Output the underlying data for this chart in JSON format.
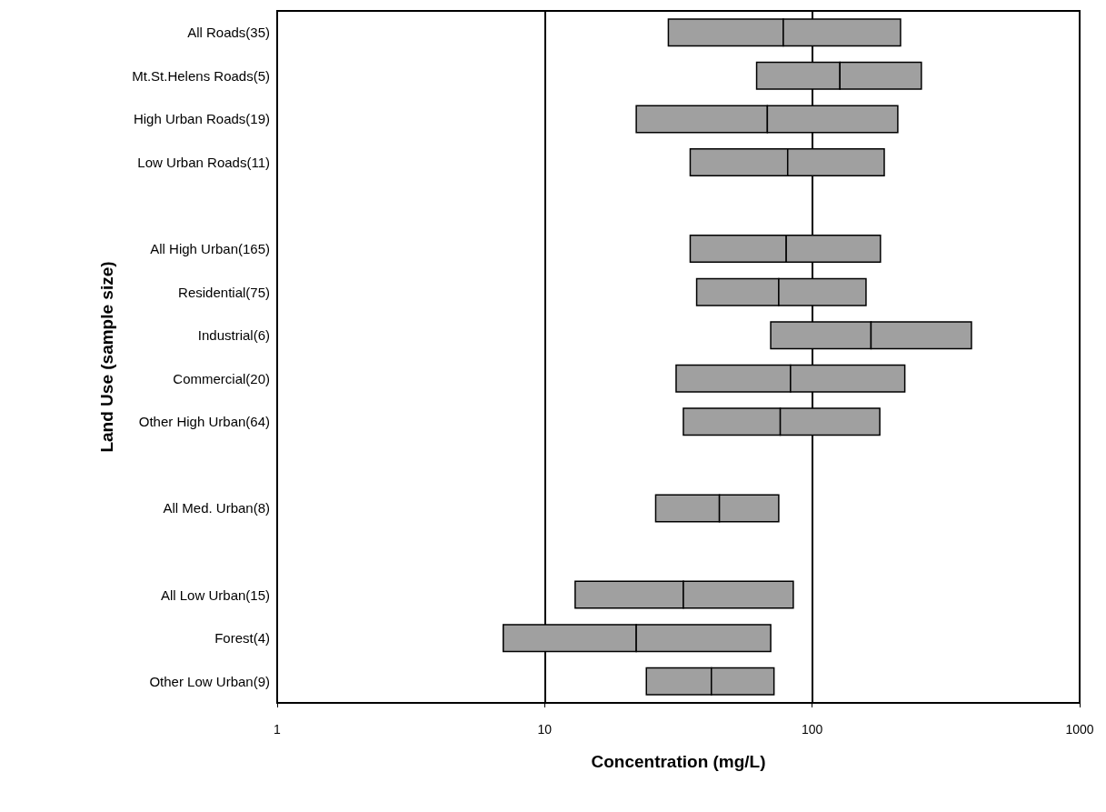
{
  "chart_data": {
    "type": "bar",
    "orientation": "horizontal",
    "log": "x",
    "xlabel": "Concentration (mg/L)",
    "ylabel": "Land Use (sample size)",
    "categories": [
      "All Roads(35)",
      "Mt.St.Helens Roads(5)",
      "High Urban Roads(19)",
      "Low Urban Roads(11)",
      null,
      "All High Urban(165)",
      "Residential(75)",
      "Industrial(6)",
      "Commercial(20)",
      "Other High Urban(64)",
      null,
      "All Med. Urban(8)",
      null,
      "All Low Urban(15)",
      "Forest(4)",
      "Other Low Urban(9)"
    ],
    "xlim": [
      1,
      1000
    ],
    "xticks": [
      1,
      10,
      100,
      1000
    ],
    "grid": "x",
    "series": [
      {
        "color": "#a0a0a0",
        "base": [
          29,
          62,
          22,
          35,
          null,
          35,
          37,
          70,
          31,
          33,
          null,
          26,
          null,
          13,
          7,
          24
        ],
        "values": [
          49,
          65,
          46,
          46,
          null,
          45,
          38,
          96,
          52,
          43,
          null,
          19,
          null,
          20,
          15,
          18
        ]
      },
      {
        "color": "#a0a0a0",
        "base": [
          78,
          127,
          68,
          81,
          null,
          80,
          75,
          166,
          83,
          76,
          null,
          45,
          null,
          33,
          22,
          42
        ],
        "values": [
          136,
          129,
          141,
          105,
          null,
          100,
          84,
          228,
          139,
          103,
          null,
          30,
          null,
          52,
          48,
          30
        ]
      }
    ]
  }
}
